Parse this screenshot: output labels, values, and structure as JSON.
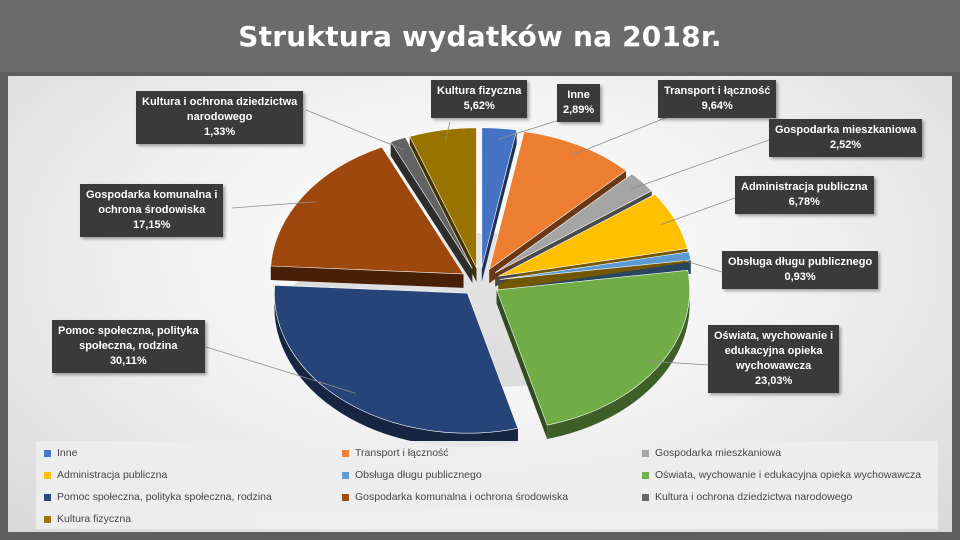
{
  "title": "Struktura wydatków na 2018r.",
  "chart_data": {
    "type": "pie",
    "title": "Struktura wydatków na 2018r.",
    "unit": "%",
    "slices": [
      {
        "label": "Inne",
        "callout_lines": [
          "Inne"
        ],
        "value": 2.89,
        "value_text": "2,89%",
        "color": "#4472c4"
      },
      {
        "label": "Transport i łączność",
        "callout_lines": [
          "Transport i łączność"
        ],
        "value": 9.64,
        "value_text": "9,64%",
        "color": "#ed7d31"
      },
      {
        "label": "Gospodarka mieszkaniowa",
        "callout_lines": [
          "Gospodarka mieszkaniowa"
        ],
        "value": 2.52,
        "value_text": "2,52%",
        "color": "#a5a5a5"
      },
      {
        "label": "Administracja publiczna",
        "callout_lines": [
          "Administracja publiczna"
        ],
        "value": 6.78,
        "value_text": "6,78%",
        "color": "#ffc000"
      },
      {
        "label": "Obsługa długu publicznego",
        "callout_lines": [
          "Obsługa długu publicznego"
        ],
        "value": 0.93,
        "value_text": "0,93%",
        "color": "#5b9bd5"
      },
      {
        "label": "Oświata, wychowanie i edukacyjna opieka wychowawcza",
        "callout_lines": [
          "Oświata, wychowanie i",
          "edukacyjna opieka",
          "wychowawcza"
        ],
        "value": 23.03,
        "value_text": "23,03%",
        "color": "#70ad47"
      },
      {
        "label": "Pomoc społeczna, polityka społeczna, rodzina",
        "callout_lines": [
          "Pomoc społeczna, polityka",
          "społeczna, rodzina"
        ],
        "value": 30.11,
        "value_text": "30,11%",
        "color": "#264478"
      },
      {
        "label": "Gospodarka komunalna i ochrona środowiska",
        "callout_lines": [
          "Gospodarka komunalna i",
          "ochrona środowiska"
        ],
        "value": 17.15,
        "value_text": "17,15%",
        "color": "#9e480e"
      },
      {
        "label": "Kultura i ochrona dziedzictwa narodowego",
        "callout_lines": [
          "Kultura i ochrona dziedzictwa",
          "narodowego"
        ],
        "value": 1.33,
        "value_text": "1,33%",
        "color": "#636363"
      },
      {
        "label": "Kultura fizyczna",
        "callout_lines": [
          "Kultura fizyczna"
        ],
        "value": 5.62,
        "value_text": "5,62%",
        "color": "#997300"
      }
    ],
    "legend_position": "bottom"
  }
}
